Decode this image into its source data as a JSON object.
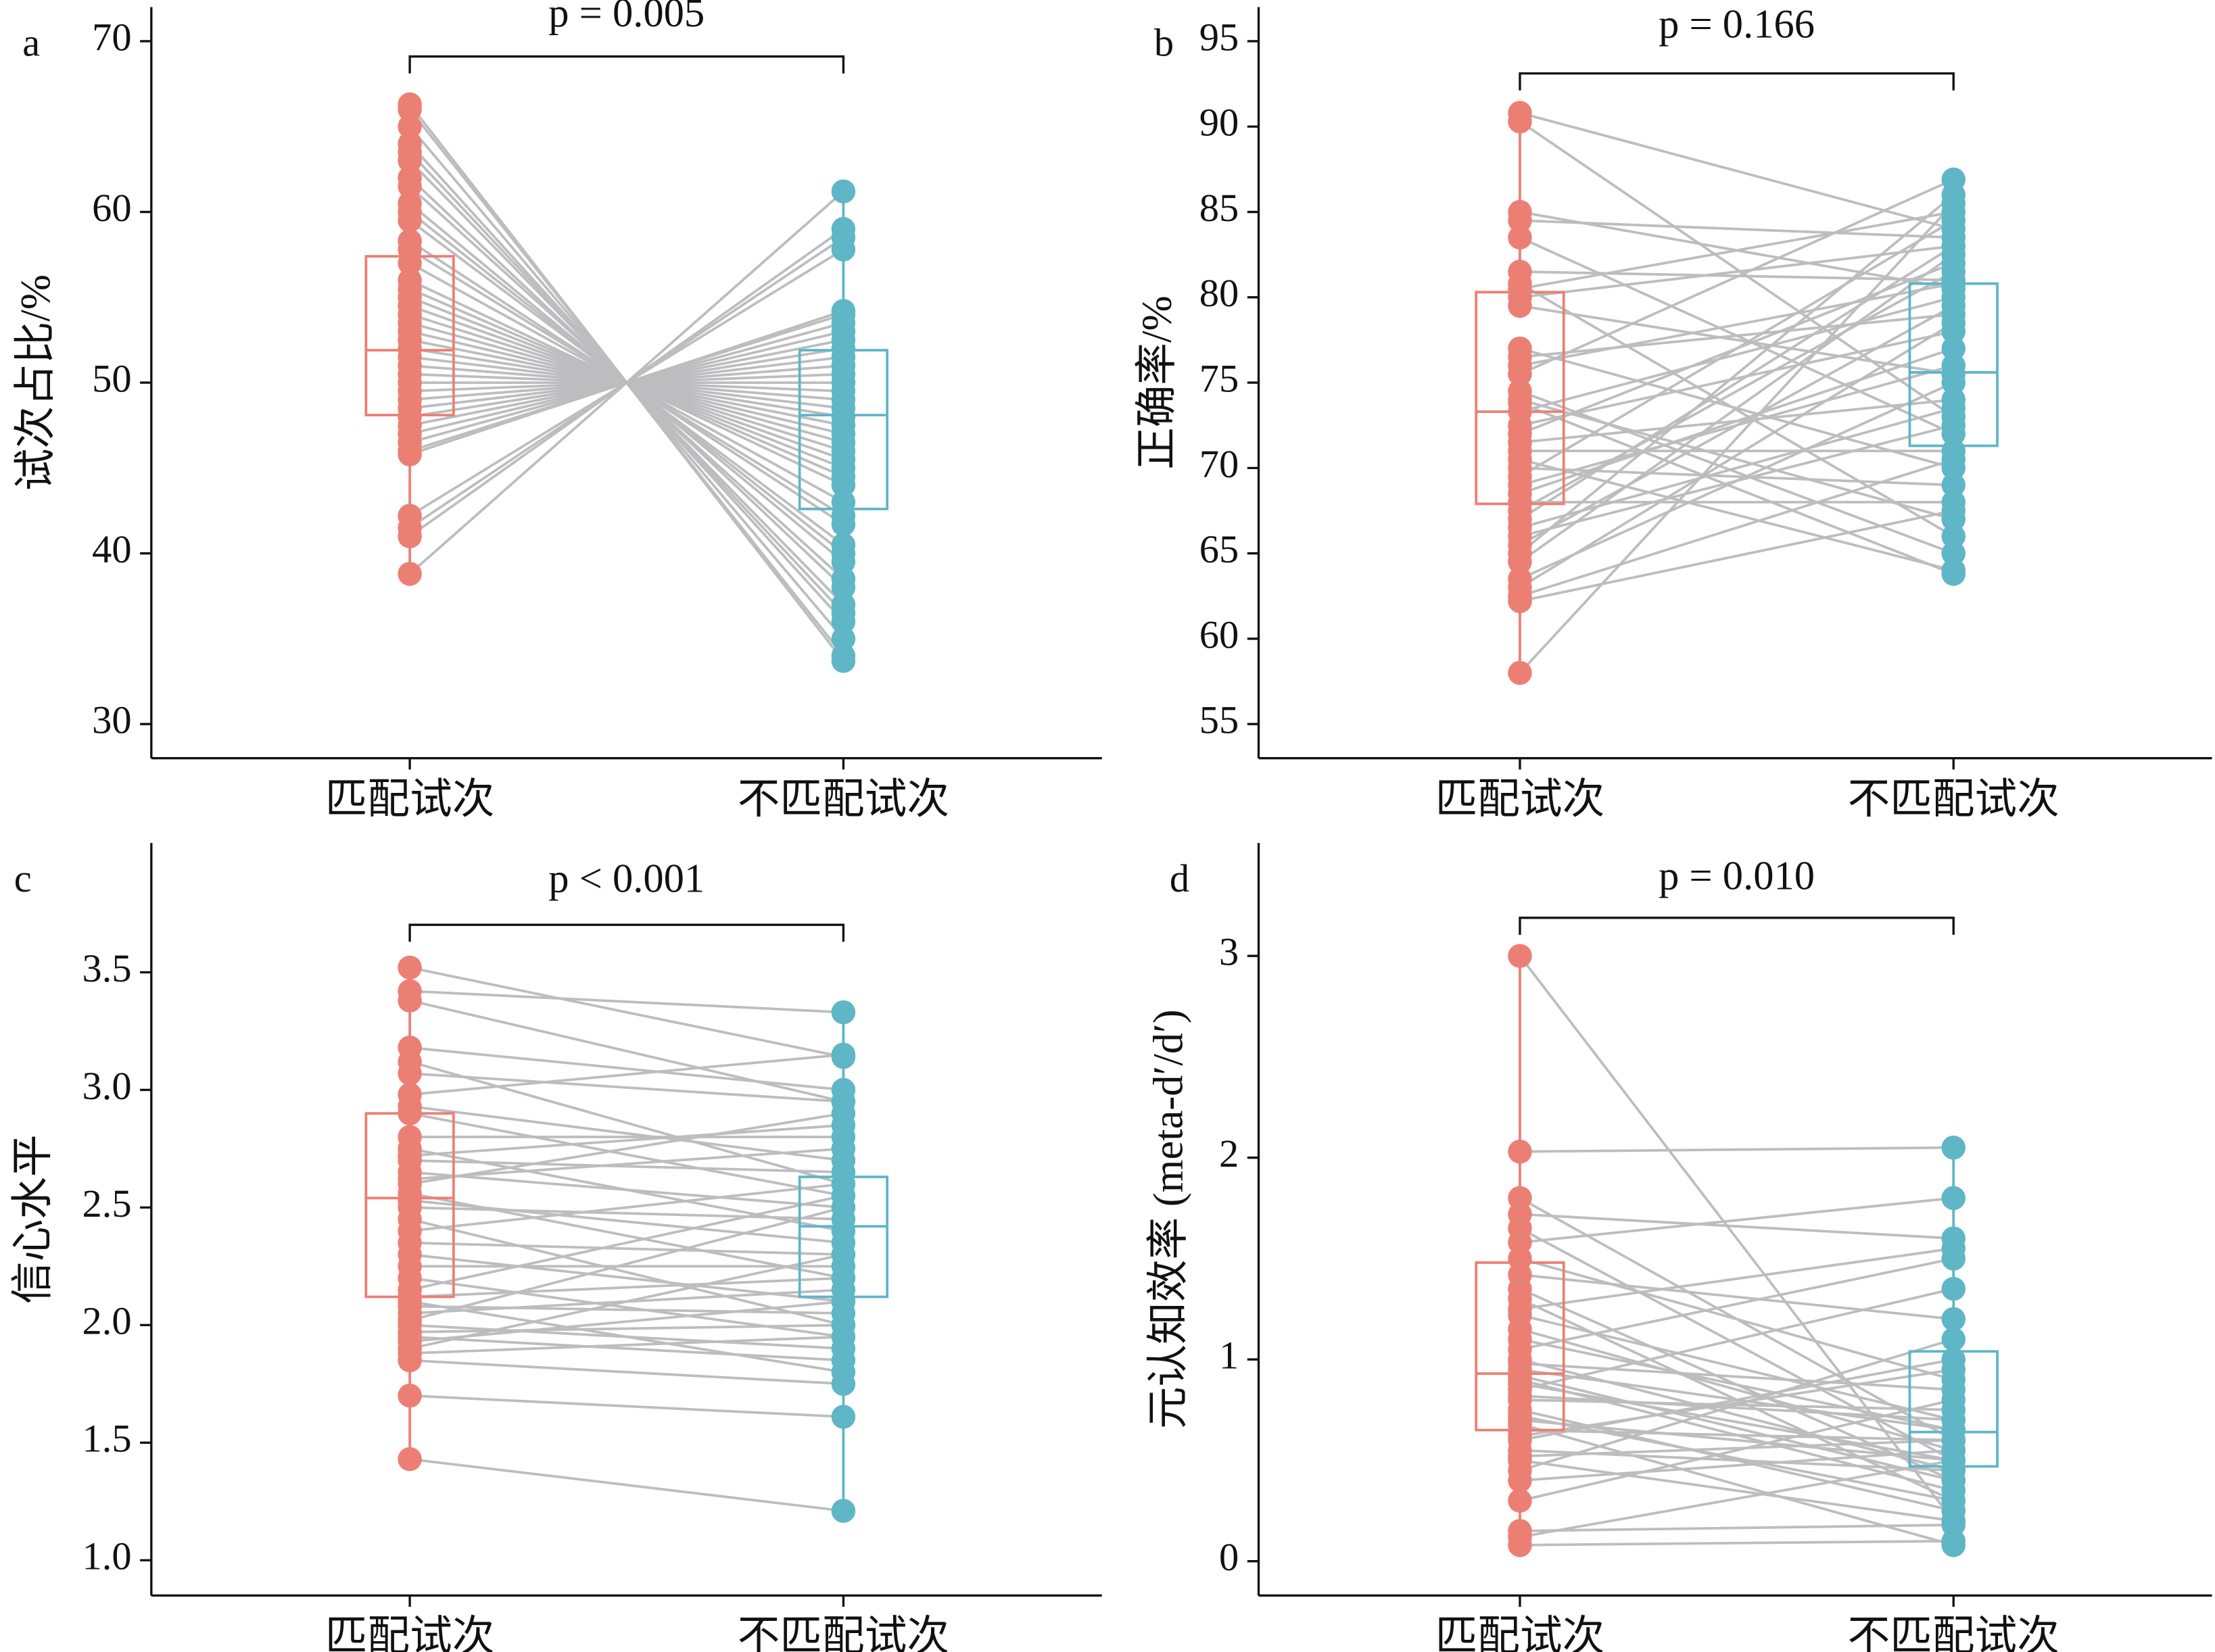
{
  "chart_data": [
    {
      "type": "paired_box",
      "panel_label": "a",
      "annotation": "p = 0.005",
      "ylabel": "试次占比/%",
      "categories": [
        "匹配试次",
        "不匹配试次"
      ],
      "pivot": 50,
      "series": [
        {
          "color": "#ec7f74",
          "values": [
            66.3,
            66,
            65,
            64,
            63.5,
            63,
            62,
            61.5,
            60.5,
            60,
            59.5,
            58.3,
            57.8,
            57,
            56,
            55.5,
            55,
            54.5,
            54,
            53.5,
            53,
            52.5,
            52,
            51.5,
            51,
            50.5,
            50,
            49.5,
            49,
            48.5,
            48,
            47.5,
            47,
            46.5,
            46,
            45.8,
            42.2,
            41.5,
            41,
            38.8
          ],
          "box": {
            "whislo": 38.8,
            "q1": 48.1,
            "median": 51.9,
            "q3": 57.4,
            "whishi": 66.3
          }
        },
        {
          "color": "#5fb6c6",
          "values": [
            33.7,
            34,
            35,
            36,
            36.5,
            37,
            38,
            38.5,
            39.5,
            40,
            40.5,
            41.7,
            42.2,
            43,
            44,
            44.5,
            45,
            45.5,
            46,
            46.5,
            47,
            47.5,
            48,
            48.5,
            49,
            49.5,
            50,
            50.5,
            51,
            51.5,
            52,
            52.5,
            53,
            53.5,
            54,
            54.2,
            57.8,
            58.5,
            59,
            61.2
          ],
          "box": {
            "whislo": 33.7,
            "q1": 42.6,
            "median": 48.1,
            "q3": 51.9,
            "whishi": 61.2
          }
        }
      ],
      "ylim": [
        28,
        72
      ],
      "yticks": [
        30,
        40,
        50,
        60,
        70
      ]
    },
    {
      "type": "paired_box",
      "panel_label": "b",
      "annotation": "p = 0.166",
      "ylabel": "正确率/%",
      "categories": [
        "匹配试次",
        "不匹配试次"
      ],
      "series": [
        {
          "color": "#ec7f74",
          "values": [
            90.8,
            90.3,
            85,
            84.5,
            83.5,
            81.5,
            80.8,
            80.5,
            80,
            79.5,
            77,
            76.5,
            75.5,
            74.5,
            74,
            73.3,
            72.5,
            72,
            71.5,
            71,
            70.5,
            70,
            69.5,
            69,
            68.5,
            68,
            67.5,
            67,
            66.5,
            66,
            65.5,
            65,
            64.5,
            63.5,
            63,
            62.5,
            62.2,
            58,
            73.8,
            76
          ],
          "box": {
            "whislo": 58,
            "q1": 67.9,
            "median": 73.3,
            "q3": 80.3,
            "whishi": 90.8
          }
        },
        {
          "color": "#5fb6c6",
          "values": [
            84,
            73,
            80.5,
            83.5,
            72,
            81,
            66,
            85,
            83,
            75.5,
            70,
            79,
            86.9,
            65,
            67,
            80,
            78,
            82,
            74,
            71,
            64,
            69,
            84.5,
            76,
            77,
            68,
            81.5,
            83,
            73.5,
            72.5,
            79.5,
            86,
            82.5,
            75,
            78.5,
            70.5,
            67.5,
            85.5,
            63.8,
            80.8
          ],
          "box": {
            "whislo": 63.8,
            "q1": 71.3,
            "median": 75.6,
            "q3": 80.8,
            "whishi": 86.9
          }
        }
      ],
      "ylim": [
        53,
        97
      ],
      "yticks": [
        55,
        60,
        65,
        70,
        75,
        80,
        85,
        90,
        95
      ]
    },
    {
      "type": "paired_box",
      "panel_label": "c",
      "annotation": "p < 0.001",
      "ylabel": "信心水平",
      "categories": [
        "匹配试次",
        "不匹配试次"
      ],
      "series": [
        {
          "color": "#ec7f74",
          "values": [
            3.52,
            3.42,
            3.38,
            3.18,
            3.12,
            3.07,
            2.98,
            2.93,
            2.9,
            2.8,
            2.75,
            2.7,
            2.65,
            2.6,
            2.56,
            2.53,
            2.5,
            2.45,
            2.4,
            2.35,
            2.3,
            2.25,
            2.2,
            2.15,
            2.1,
            2.08,
            2.05,
            2.0,
            1.97,
            1.95,
            1.9,
            1.85,
            1.88,
            1.93,
            2.02,
            2.12,
            2.62,
            2.72,
            1.7,
            1.43
          ],
          "box": {
            "whislo": 1.43,
            "q1": 2.12,
            "median": 2.54,
            "q3": 2.9,
            "whishi": 3.52
          }
        },
        {
          "color": "#5fb6c6",
          "values": [
            3.14,
            3.33,
            2.95,
            3.0,
            2.6,
            2.95,
            3.15,
            2.7,
            2.55,
            2.8,
            2.4,
            2.65,
            2.5,
            2.9,
            2.2,
            2.35,
            2.45,
            2.0,
            2.6,
            2.3,
            2.1,
            2.25,
            1.95,
            2.55,
            1.8,
            2.05,
            2.15,
            1.9,
            2.0,
            1.85,
            2.3,
            1.75,
            1.95,
            2.1,
            2.5,
            2.2,
            2.75,
            2.85,
            1.61,
            1.21
          ],
          "box": {
            "whislo": 1.21,
            "q1": 2.12,
            "median": 2.42,
            "q3": 2.63,
            "whishi": 3.33
          }
        }
      ],
      "ylim": [
        0.85,
        4.05
      ],
      "yticks": [
        {
          "value": 1,
          "label": "1.0"
        },
        1.5,
        {
          "value": 2,
          "label": "2.0"
        },
        2.5,
        {
          "value": 3,
          "label": "3.0"
        },
        3.5
      ]
    },
    {
      "type": "paired_box",
      "panel_label": "d",
      "annotation": "p = 0.010",
      "ylabel": "元认知效率 (meta-d′/d′)",
      "categories": [
        "匹配试次",
        "不匹配试次"
      ],
      "series": [
        {
          "color": "#ec7f74",
          "values": [
            3.0,
            2.03,
            1.8,
            1.72,
            1.65,
            1.58,
            1.5,
            1.42,
            1.35,
            1.3,
            1.22,
            1.15,
            1.05,
            1.0,
            0.95,
            0.9,
            0.85,
            0.8,
            0.75,
            0.7,
            0.65,
            0.6,
            0.55,
            0.5,
            0.45,
            0.4,
            0.3,
            0.15,
            0.08,
            0.12,
            0.92,
            0.98,
            1.1,
            0.72,
            0.62,
            0.52,
            0.82,
            0.88,
            1.25,
            0.68
          ],
          "box": {
            "whislo": 0.08,
            "q1": 0.65,
            "median": 0.93,
            "q3": 1.48,
            "whishi": 3.0
          }
        },
        {
          "color": "#5fb6c6",
          "values": [
            0.2,
            2.05,
            0.6,
            1.6,
            0.5,
            1.8,
            0.9,
            1.2,
            0.4,
            0.3,
            0.7,
            0.55,
            1.5,
            0.45,
            0.65,
            0.35,
            1.35,
            0.75,
            0.25,
            0.5,
            0.6,
            1.0,
            0.45,
            0.2,
            1.1,
            0.55,
            0.8,
            0.18,
            0.1,
            0.5,
            0.4,
            0.85,
            0.65,
            0.3,
            0.95,
            0.6,
            0.7,
            0.5,
            1.55,
            0.08
          ],
          "box": {
            "whislo": 0.08,
            "q1": 0.47,
            "median": 0.64,
            "q3": 1.04,
            "whishi": 2.05
          }
        }
      ],
      "ylim": [
        -0.17,
        3.56
      ],
      "yticks": [
        0,
        1,
        2,
        3
      ]
    }
  ]
}
